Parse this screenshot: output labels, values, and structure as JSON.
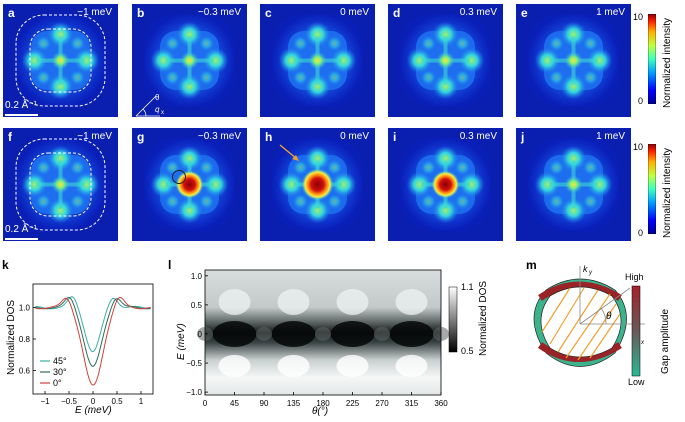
{
  "row1": {
    "panels": [
      {
        "letter": "a",
        "energy": "−1 meV",
        "core": "weak",
        "ring": true
      },
      {
        "letter": "b",
        "energy": "−0.3 meV",
        "core": "weak",
        "ring": false
      },
      {
        "letter": "c",
        "energy": "0 meV",
        "core": "weak",
        "ring": false
      },
      {
        "letter": "d",
        "energy": "0.3 meV",
        "core": "weak",
        "ring": false
      },
      {
        "letter": "e",
        "energy": "1 meV",
        "core": "weak",
        "ring": false
      }
    ],
    "scale_bar": "0.2 Å⁻¹",
    "axis_label": "q",
    "axis_sub": "x",
    "axis_angle": "θ",
    "colorbar": {
      "max": "10",
      "min": "0",
      "label": "Normalized intensity"
    }
  },
  "row2": {
    "panels": [
      {
        "letter": "f",
        "energy": "−1 meV",
        "core": "weak",
        "ring": true
      },
      {
        "letter": "g",
        "energy": "−0.3 meV",
        "core": "strong",
        "ring": false
      },
      {
        "letter": "h",
        "energy": "0 meV",
        "core": "strongest",
        "ring": false
      },
      {
        "letter": "i",
        "energy": "0.3 meV",
        "core": "strong",
        "ring": false
      },
      {
        "letter": "j",
        "energy": "1 meV",
        "core": "weak",
        "ring": false
      }
    ],
    "scale_bar": "0.2 Å⁻¹",
    "colorbar": {
      "max": "10",
      "min": "0",
      "label": "Normalized intensity"
    }
  },
  "panel_k": {
    "letter": "k",
    "ylabel": "Normalized DOS",
    "xlabel": "E (meV)",
    "chart_data": {
      "type": "line",
      "x_ticks": [
        "−1",
        "−0.5",
        "0",
        "0.5",
        "1"
      ],
      "y_ticks": [
        "1.0",
        "0.8",
        "0.6"
      ],
      "xlim": [
        -1.25,
        1.25
      ],
      "ylim": [
        0.45,
        1.15
      ],
      "series": [
        {
          "name": "45°",
          "color": "#3aafa0",
          "min": 0.72
        },
        {
          "name": "30°",
          "color": "#2e6b5e",
          "min": 0.62
        },
        {
          "name": "0°",
          "color": "#d0413a",
          "min": 0.5
        }
      ]
    }
  },
  "panel_l": {
    "letter": "l",
    "ylabel": "E (meV)",
    "xlabel": "θ(°)",
    "chart_data": {
      "type": "heatmap",
      "x_ticks": [
        "0",
        "45",
        "90",
        "135",
        "180",
        "225",
        "270",
        "315",
        "360"
      ],
      "y_ticks": [
        "1.0",
        "0.5",
        "0",
        "−0.5",
        "−1.0"
      ],
      "xlim": [
        0,
        360
      ],
      "ylim": [
        -1.05,
        1.1
      ],
      "gap_minima_deg": [
        0,
        90,
        180,
        270,
        360
      ],
      "gap_maxima_deg": [
        45,
        135,
        225,
        315
      ]
    },
    "colorbar": {
      "max": "1.1",
      "min": "0.5",
      "label": "Normalized DOS"
    }
  },
  "panel_m": {
    "letter": "m",
    "ky": "k",
    "ky_sub": "y",
    "kx": "k",
    "kx_sub": "x",
    "theta": "θ",
    "colorbar": {
      "high": "High",
      "low": "Low",
      "label": "Gap amplitude"
    }
  }
}
